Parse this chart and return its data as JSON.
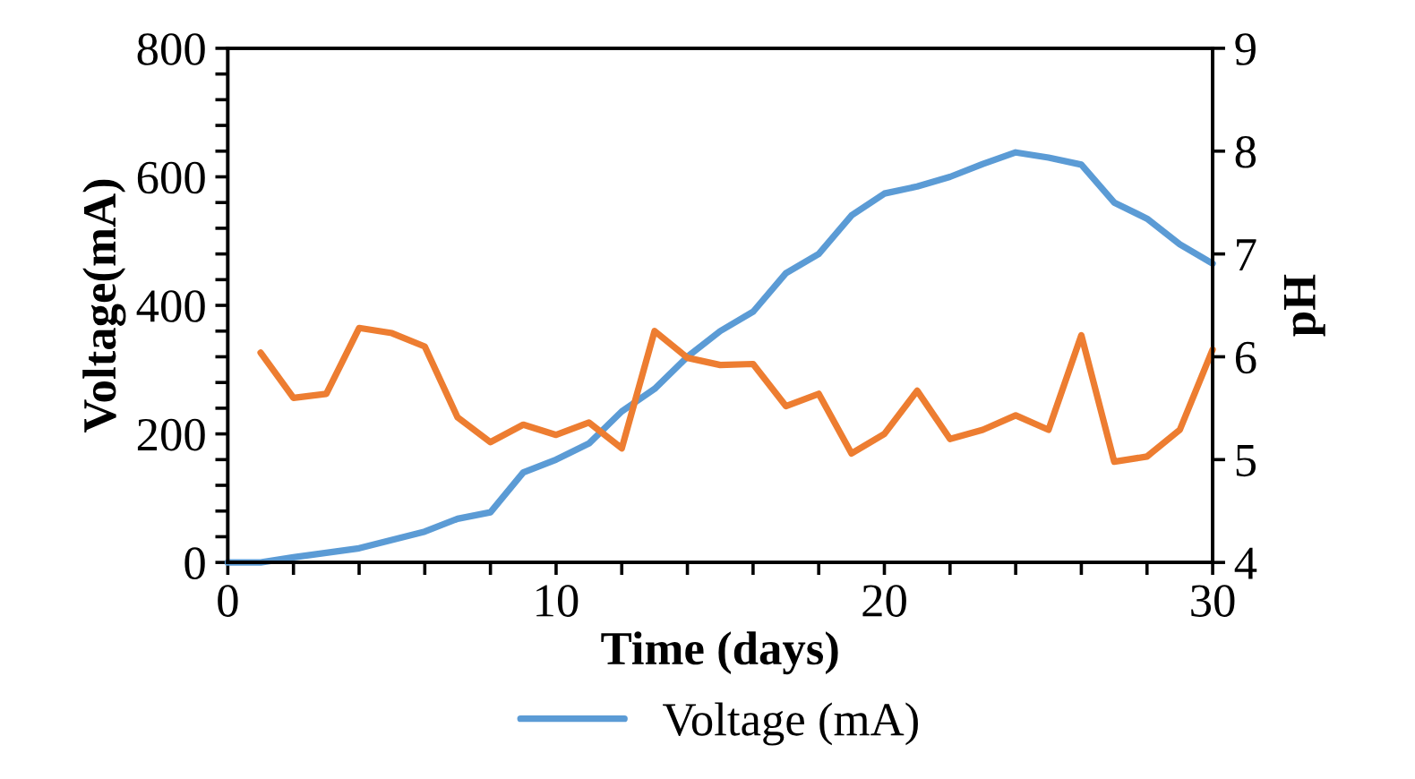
{
  "chart_data": {
    "type": "line",
    "xlabel": "Time (days)",
    "ylabel": "Voltage(mA)",
    "y2label": "pH",
    "x": [
      0,
      1,
      2,
      3,
      4,
      5,
      6,
      7,
      8,
      9,
      10,
      11,
      12,
      13,
      14,
      15,
      16,
      17,
      18,
      19,
      20,
      21,
      22,
      23,
      24,
      25,
      26,
      27,
      28,
      29,
      30
    ],
    "series": [
      {
        "name": "Voltage (mA)",
        "color": "#5b9bd5",
        "values": [
          0,
          0,
          8,
          15,
          22,
          35,
          48,
          68,
          78,
          140,
          160,
          185,
          235,
          270,
          320,
          360,
          390,
          450,
          480,
          540,
          574,
          585,
          600,
          620,
          638,
          630,
          619,
          560,
          535,
          495,
          465
        ]
      },
      {
        "color": "#ed7d31",
        "axis": "y2",
        "x": [
          1,
          2,
          3,
          4,
          5,
          6,
          7,
          8,
          9,
          10,
          11,
          12,
          13,
          14,
          15,
          16,
          17,
          18,
          19,
          20,
          21,
          22,
          23,
          24,
          25,
          26,
          27,
          28,
          29,
          30
        ],
        "values": [
          6.04,
          5.6,
          5.64,
          6.28,
          6.23,
          6.1,
          5.41,
          5.17,
          5.34,
          5.24,
          5.36,
          5.11,
          6.25,
          5.99,
          5.92,
          5.93,
          5.52,
          5.64,
          5.06,
          5.25,
          5.67,
          5.2,
          5.29,
          5.43,
          5.29,
          6.21,
          4.98,
          5.03,
          5.29,
          6.07
        ]
      }
    ],
    "xlim": [
      0,
      30
    ],
    "xticks": [
      0,
      {
        "value": 2,
        "label": null
      },
      {
        "value": 4,
        "label": null
      },
      {
        "value": 6,
        "label": null
      },
      {
        "value": 8,
        "label": null
      },
      10,
      {
        "value": 12,
        "label": null
      },
      {
        "value": 14,
        "label": null
      },
      {
        "value": 16,
        "label": null
      },
      {
        "value": 18,
        "label": null
      },
      20,
      {
        "value": 22,
        "label": null
      },
      {
        "value": 24,
        "label": null
      },
      {
        "value": 26,
        "label": null
      },
      {
        "value": 28,
        "label": null
      },
      30
    ],
    "ylim": [
      0,
      800
    ],
    "yticks": [
      0,
      {
        "value": 40,
        "label": null
      },
      {
        "value": 80,
        "label": null
      },
      {
        "value": 120,
        "label": null
      },
      {
        "value": 160,
        "label": null
      },
      200,
      {
        "value": 240,
        "label": null
      },
      {
        "value": 280,
        "label": null
      },
      {
        "value": 320,
        "label": null
      },
      {
        "value": 360,
        "label": null
      },
      400,
      {
        "value": 440,
        "label": null
      },
      {
        "value": 480,
        "label": null
      },
      {
        "value": 520,
        "label": null
      },
      {
        "value": 560,
        "label": null
      },
      600,
      {
        "value": 640,
        "label": null
      },
      {
        "value": 680,
        "label": null
      },
      {
        "value": 720,
        "label": null
      },
      {
        "value": 760,
        "label": null
      },
      800
    ],
    "y2lim": [
      4,
      9
    ],
    "y2ticks": [
      4,
      5,
      6,
      7,
      8,
      9
    ],
    "grid": false,
    "legend": "bottom",
    "marker": "none",
    "line_style": "solid"
  }
}
